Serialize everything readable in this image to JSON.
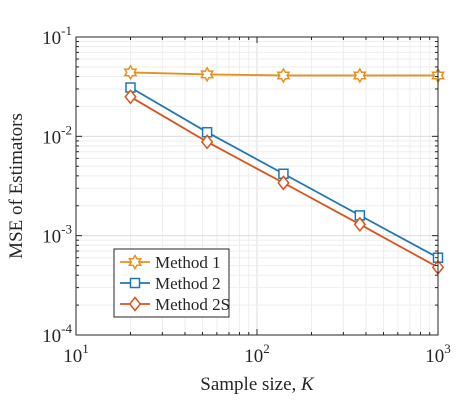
{
  "chart_data": {
    "type": "line",
    "xlabel": "Sample size, ",
    "xlabel_var": "K",
    "ylabel": "MSE of Estimators",
    "x_scale": "log",
    "y_scale": "log",
    "xlim": [
      10,
      1000
    ],
    "ylim": [
      0.0001,
      0.1
    ],
    "grid": true,
    "minor_grid": true,
    "legend_position": "bottom-left",
    "x_ticks": [
      {
        "value": 10,
        "base": "10",
        "exp": "1"
      },
      {
        "value": 100,
        "base": "10",
        "exp": "2"
      },
      {
        "value": 1000,
        "base": "10",
        "exp": "3"
      }
    ],
    "y_ticks": [
      {
        "value": 0.0001,
        "base": "10",
        "exp": "-4"
      },
      {
        "value": 0.001,
        "base": "10",
        "exp": "-3"
      },
      {
        "value": 0.01,
        "base": "10",
        "exp": "-2"
      },
      {
        "value": 0.1,
        "base": "10",
        "exp": "-1"
      }
    ],
    "x": [
      20,
      53,
      140,
      370,
      1000
    ],
    "series": [
      {
        "name": "Method 1",
        "color": "#e8901c",
        "marker": "hexagram",
        "values": [
          0.044,
          0.042,
          0.041,
          0.041,
          0.041
        ]
      },
      {
        "name": "Method 2",
        "color": "#1f77b4",
        "marker": "square",
        "values": [
          0.031,
          0.011,
          0.0042,
          0.0016,
          0.0006
        ]
      },
      {
        "name": "Method 2S",
        "color": "#d95319",
        "marker": "diamond",
        "values": [
          0.025,
          0.0088,
          0.0034,
          0.0013,
          0.00048
        ]
      }
    ]
  }
}
